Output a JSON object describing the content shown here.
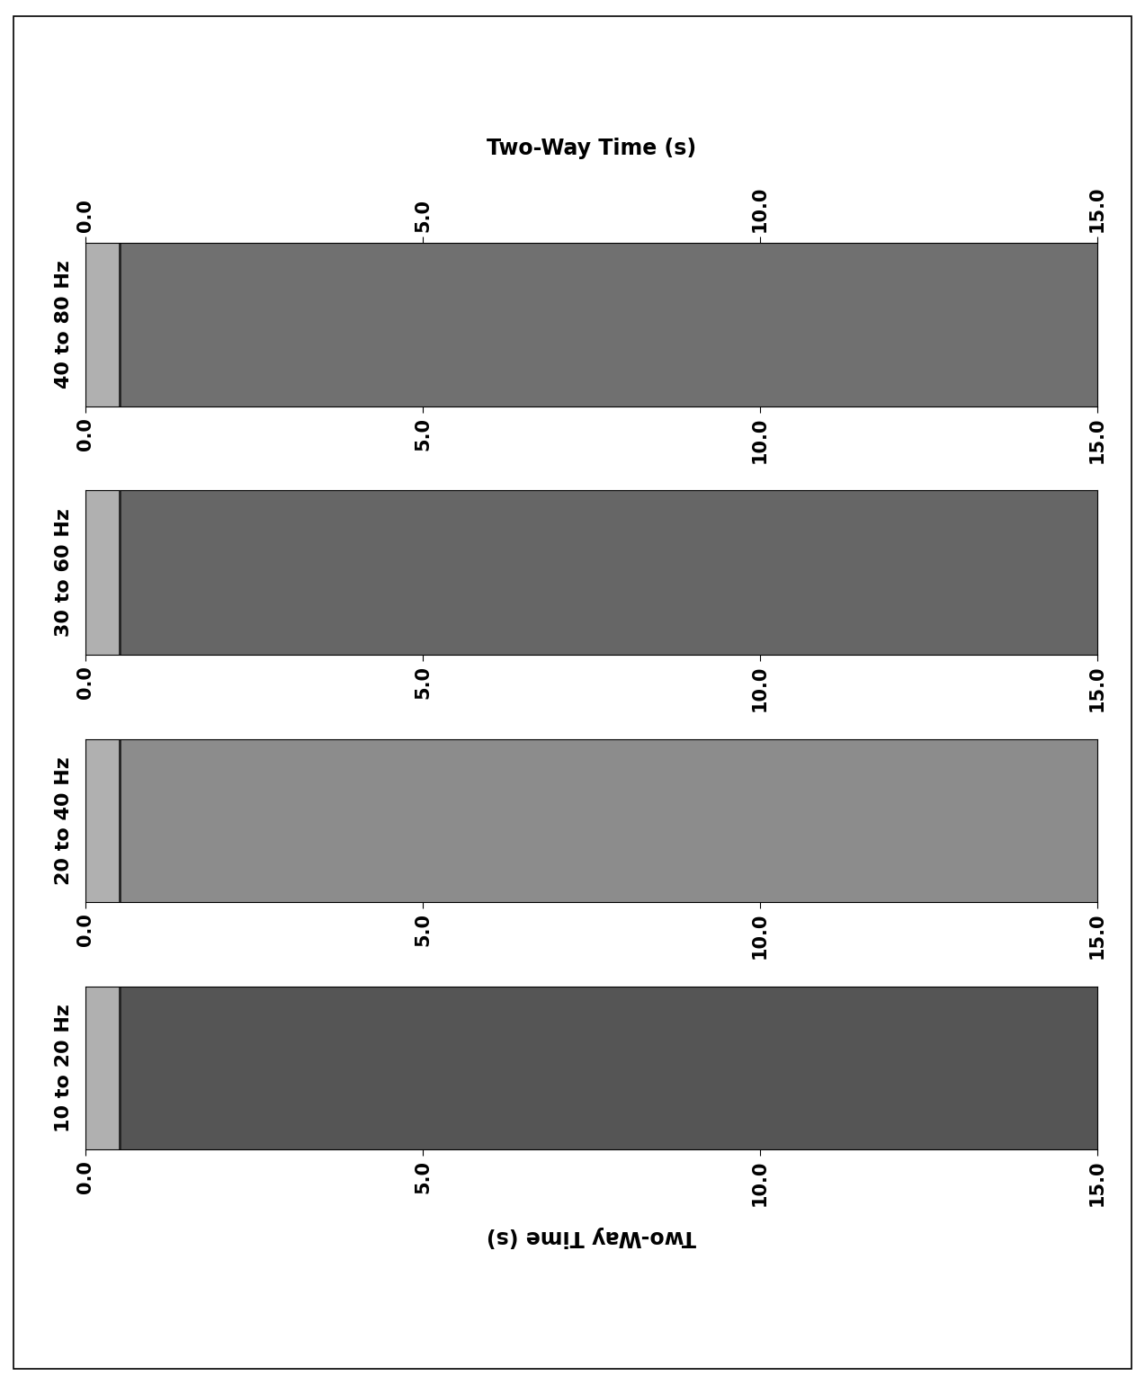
{
  "chart_data": [
    {
      "type": "seismic_section",
      "title": "40 to 80 Hz",
      "xlabel": "Two-Way Time (s)",
      "xlim": [
        0,
        15
      ],
      "xticks": [
        {
          "value": 0,
          "label": "0.0"
        },
        {
          "value": 5,
          "label": "5.0"
        },
        {
          "value": 10,
          "label": "10.0"
        },
        {
          "value": 15,
          "label": "15.0"
        }
      ],
      "first_arrival": 0.5,
      "color": "#707070",
      "tick_labels": "x"
    },
    {
      "type": "seismic_section",
      "title": "30 to 60 Hz",
      "xlim": [
        0,
        15
      ],
      "xticks": [
        {
          "value": 0,
          "label": "0.0"
        },
        {
          "value": 5,
          "label": "5.0"
        },
        {
          "value": 10,
          "label": "10.0"
        },
        {
          "value": 15,
          "label": "15.0"
        }
      ],
      "first_arrival": 0.5,
      "color": "#666666",
      "tick_labels": "x"
    },
    {
      "type": "seismic_section",
      "title": "20 to 40 Hz",
      "xlim": [
        0,
        15
      ],
      "xticks": [
        {
          "value": 0,
          "label": "0.0"
        },
        {
          "value": 5,
          "label": "5.0"
        },
        {
          "value": 10,
          "label": "10.0"
        },
        {
          "value": 15,
          "label": "15.0"
        }
      ],
      "first_arrival": 0.5,
      "color": "#8c8c8c",
      "tick_labels": "x"
    },
    {
      "type": "seismic_section",
      "title": "10 to 20 Hz",
      "xlabel": "Two-Way Time (s)",
      "xlim": [
        0,
        15
      ],
      "xticks": [
        {
          "value": 0,
          "label": "0.0"
        },
        {
          "value": 5,
          "label": "5.0"
        },
        {
          "value": 10,
          "label": "10.0"
        },
        {
          "value": 15,
          "label": "15.0"
        }
      ],
      "first_arrival": 0.5,
      "color": "#555555",
      "tick_labels": "x"
    }
  ]
}
